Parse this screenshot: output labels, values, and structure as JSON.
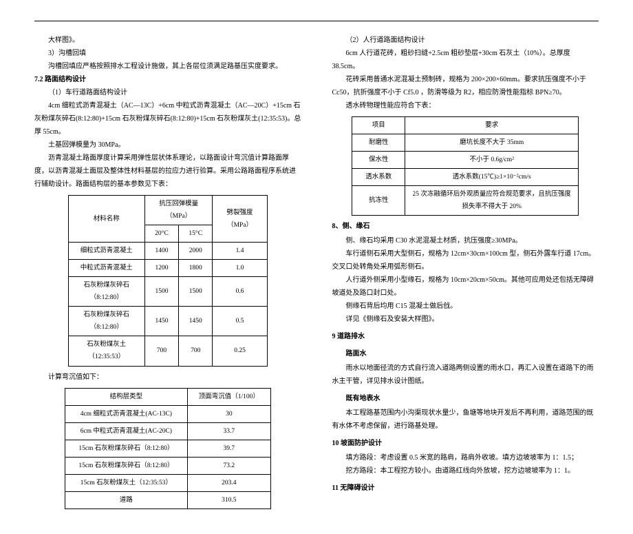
{
  "left": {
    "p1": "大样图》。",
    "p2": "3）沟槽回填",
    "p3": "沟槽回填应严格按照排水工程设计施做，其上各层位须满足路基压实度要求。",
    "h72": "7.2 路面结构设计",
    "p4": "（1）车行道路面结构设计",
    "p5": "4cm 细粒式沥青混凝土（AC—13C）+6cm 中粒式沥青混凝土（AC—20C）+15cm 石灰粉煤灰碎石(8:12:80)+15cm 石灰粉煤灰碎石(8:12:80)+15cm 石灰粉煤灰土(12:35:53)。总厚 55cm。",
    "p6": "土基回弹模量为 30MPa。",
    "p7": "沥青混凝土路面厚度计算采用弹性层状体系理论，以路面设计弯沉值计算路面厚度，以沥青混凝土面层及整体性材料基层的拉应力进行验算。采用公路路面程序系统进行辅助设计。路面结构层的基本参数见下表：",
    "t1": {
      "col_material": "材料名称",
      "col_mod": "抗压回弹模量（MPa）",
      "col_split": "劈裂强度（MPa）",
      "col_20c": "20°C",
      "col_15c": "15°C",
      "rows": [
        {
          "m": "细粒式沥青混凝土",
          "c20": "1400",
          "c15": "2000",
          "s": "1.4"
        },
        {
          "m": "中粒式沥青混凝土",
          "c20": "1200",
          "c15": "1800",
          "s": "1.0"
        },
        {
          "m": "石灰粉煤灰碎石（8:12:80）",
          "c20": "1500",
          "c15": "1500",
          "s": "0.6"
        },
        {
          "m": "石灰粉煤灰碎石（8:12:80）",
          "c20": "1450",
          "c15": "1450",
          "s": "0.5"
        },
        {
          "m": "石灰粉煤灰土（12:35:53）",
          "c20": "700",
          "c15": "700",
          "s": "0.25"
        }
      ]
    },
    "p8": "计算弯沉值如下：",
    "t2": {
      "col1": "结构层类型",
      "col2": "顶面弯沉值（1/100）",
      "rows": [
        {
          "a": "4cm 细粒式沥青混凝土(AC-13C)",
          "b": "30"
        },
        {
          "a": "6cm 中粒式沥青混凝土(AC-20C)",
          "b": "33.7"
        },
        {
          "a": "15cm 石灰粉煤灰碎石（8:12:80）",
          "b": "39.7"
        },
        {
          "a": "15cm 石灰粉煤灰碎石（8:12:80）",
          "b": "73.2"
        },
        {
          "a": "15cm 石灰粉煤灰土（12:35:53）",
          "b": "203.4"
        },
        {
          "a": "道路",
          "b": "310.5"
        }
      ]
    }
  },
  "right": {
    "p1": "（2）人行道路面结构设计",
    "p2": "6cm 人行道花砖，粗砂扫缝+2.5cm 粗砂垫层+30cm 石灰土（10%）。总厚度 38.5cm。",
    "p3": "花砖采用普通水泥混凝土预制砖，规格为 200×200×60mm。要求抗压强度不小于 Cc50，抗折强度不小于 Cf5.0 ，防滑等级为 R2，相应防滑性能指标 BPN≥70。",
    "p4": "透水砖物理性能应符合下表：",
    "t3": {
      "col1": "项目",
      "col2": "要求",
      "rows": [
        {
          "a": "耐磨性",
          "b": "磨坑长度不大于 35mm"
        },
        {
          "a": "保水性",
          "b": "不小于 0.6g/cm²"
        },
        {
          "a": "透水系数",
          "b": "透水系数(15℃)≥1×10⁻²cm/s"
        },
        {
          "a": "抗冻性",
          "b": "25 次冻融循环后外观质量应符合规范要求，且抗压强度损失率不得大于 20%"
        }
      ]
    },
    "h8": "8、侧、缘石",
    "p5": "侧、缘石均采用 C30 水泥混凝土材质，抗压强度≥30MPa。",
    "p6": "车行道侧石采用大型侧石，规格为 12cm×30cm×100cm 型，侧石外露车行道 17cm。交叉口处转角处采用弧形侧石。",
    "p7": "人行道外侧采用小型缘石，规格为 10cm×20cm×50cm。其他可应用处还包括无障碍坡道处及路口封口处。",
    "p8": "侧缘石背后均用 C15 混凝土做后戗。",
    "p9": "详见《侧缘石及安装大样图》。",
    "h9": "9 道路排水",
    "sh1": "路面水",
    "p10": "雨水以地面径流的方式自行流入道路两侧设置的雨水口，再汇入设置在道路下的雨水主干管，详见排水设计图纸。",
    "sh2": "既有地表水",
    "p11": "本工程路基范围内小沟渠现状水量少，鱼塘等地块开发后不再利用，道路范围的既有水体不考虑保留，进行路基处理。",
    "h10": "10 坡面防护设计",
    "p12": "填方路段：考虑设置 0.5 米宽的路肩，路肩外收坡。填方边坡坡率为 1：1.5；",
    "p13": "挖方路段：本工程挖方较小。由道路红线向外放坡，挖方边坡坡率为 1：1。",
    "h11": "11 无障碍设计"
  }
}
